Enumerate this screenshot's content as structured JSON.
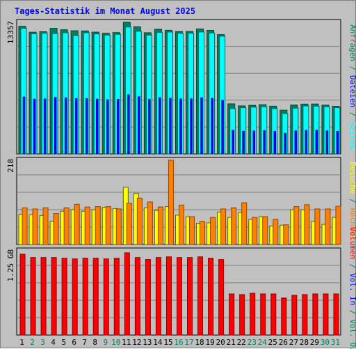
{
  "title": "Tages-Statistik im Monat August 2025",
  "colors": {
    "background": "#c0c0c0",
    "title": "#0000ff",
    "anfragen": "#00805c",
    "dateien": "#0000ff",
    "seiten": "#00ffff",
    "besuche": "#ffff00",
    "rechner": "#ff8000",
    "volumen": "#ff0000",
    "volin": "#0000ff",
    "volout": "#00805c",
    "weekend_label": "#00805c"
  },
  "chart_data": [
    {
      "type": "bar",
      "name": "top",
      "max_label": "13357",
      "ymax": 13357,
      "days": [
        "1",
        "2",
        "3",
        "4",
        "5",
        "6",
        "7",
        "8",
        "9",
        "10",
        "11",
        "12",
        "13",
        "14",
        "15",
        "16",
        "17",
        "18",
        "19",
        "20",
        "21",
        "22",
        "23",
        "24",
        "25",
        "26",
        "27",
        "28",
        "29",
        "30",
        "31"
      ],
      "weekend_days": [
        "2",
        "3",
        "9",
        "10",
        "16",
        "17",
        "23",
        "24",
        "30",
        "31"
      ],
      "series": [
        {
          "name": "Anfragen",
          "values": [
            12950,
            12350,
            12400,
            12750,
            12600,
            12500,
            12480,
            12360,
            12240,
            12320,
            13357,
            12900,
            12300,
            12650,
            12550,
            12410,
            12430,
            12680,
            12540,
            12110,
            5090,
            4880,
            4930,
            5000,
            4850,
            4440,
            4960,
            5060,
            5070,
            4950,
            4840
          ]
        },
        {
          "name": "Dateien",
          "values": [
            5800,
            5580,
            5600,
            5750,
            5700,
            5640,
            5640,
            5580,
            5520,
            5560,
            6030,
            5830,
            5560,
            5720,
            5660,
            5600,
            5610,
            5720,
            5660,
            5470,
            2420,
            2330,
            2350,
            2380,
            2310,
            2120,
            2360,
            2410,
            2420,
            2360,
            2310
          ]
        },
        {
          "name": "Seiten",
          "values": [
            12750,
            12200,
            12250,
            12220,
            12300,
            12020,
            12300,
            12180,
            12060,
            12140,
            12880,
            12450,
            12050,
            12340,
            12370,
            12240,
            12250,
            12380,
            12260,
            11950,
            4600,
            4700,
            4750,
            4800,
            4600,
            4100,
            4650,
            4870,
            4850,
            4800,
            4700
          ]
        }
      ],
      "axis_label_parts": [
        {
          "text": "Anfragen",
          "color": "anfragen"
        },
        {
          "text": " / ",
          "color": "volout"
        },
        {
          "text": "Dateien",
          "color": "dateien"
        },
        {
          "text": " / ",
          "color": "volout"
        },
        {
          "text": "Seiten",
          "color": "seiten"
        }
      ]
    },
    {
      "type": "bar",
      "name": "middle",
      "max_label": "218",
      "ymax": 218,
      "series": [
        {
          "name": "Rechner",
          "values": [
            95,
            92,
            95,
            80,
            95,
            104,
            97,
            98,
            98,
            92,
            107,
            120,
            110,
            97,
            218,
            102,
            72,
            60,
            70,
            92,
            95,
            108,
            70,
            72,
            65,
            51,
            98,
            103,
            92,
            92,
            99
          ]
        },
        {
          "name": "Besuche",
          "values": [
            78,
            77,
            75,
            60,
            86,
            90,
            86,
            90,
            96,
            93,
            148,
            132,
            95,
            88,
            98,
            76,
            72,
            55,
            56,
            84,
            70,
            83,
            65,
            72,
            48,
            50,
            90,
            90,
            60,
            52,
            70
          ]
        }
      ],
      "axis_label_parts": [
        {
          "text": "Besuche",
          "color": "besuche"
        },
        {
          "text": " / ",
          "color": "volout"
        },
        {
          "text": "Rechner",
          "color": "rechner"
        }
      ]
    },
    {
      "type": "bar",
      "name": "bottom",
      "max_label": "1.25 GB",
      "ymax": 1.25,
      "series": [
        {
          "name": "Volumen",
          "values": [
            1.2,
            1.15,
            1.15,
            1.15,
            1.14,
            1.13,
            1.14,
            1.14,
            1.13,
            1.14,
            1.22,
            1.15,
            1.12,
            1.15,
            1.16,
            1.15,
            1.15,
            1.16,
            1.14,
            1.12,
            0.61,
            0.6,
            0.62,
            0.61,
            0.61,
            0.55,
            0.59,
            0.6,
            0.61,
            0.61,
            0.61
          ]
        }
      ],
      "axis_label_parts": [
        {
          "text": "Volumen",
          "color": "volumen"
        },
        {
          "text": " / ",
          "color": "volout"
        },
        {
          "text": "Vol. In",
          "color": "volin"
        },
        {
          "text": " / ",
          "color": "volout"
        },
        {
          "text": "Vol. Out",
          "color": "volout"
        }
      ]
    }
  ]
}
